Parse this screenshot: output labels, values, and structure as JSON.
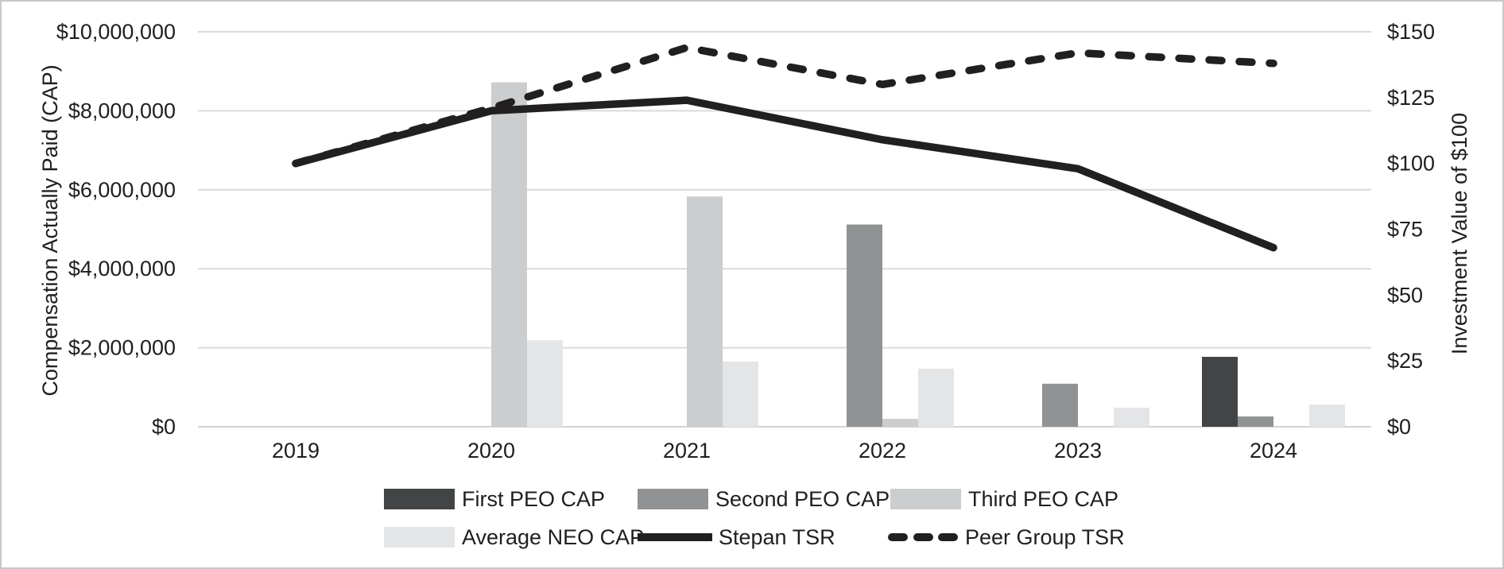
{
  "chart_data": {
    "type": "combo-bar-line",
    "title": "",
    "categories": [
      "2019",
      "2020",
      "2021",
      "2022",
      "2023",
      "2024"
    ],
    "bar_series": [
      {
        "name": "First PEO CAP",
        "color": "#424445",
        "axis": "left",
        "values": [
          null,
          null,
          null,
          null,
          null,
          1770000
        ]
      },
      {
        "name": "Second PEO CAP",
        "color": "#909293",
        "axis": "left",
        "values": [
          null,
          null,
          null,
          5120000,
          1090000,
          260000
        ]
      },
      {
        "name": "Third PEO CAP",
        "color": "#cbcdce",
        "axis": "left",
        "values": [
          null,
          8720000,
          5830000,
          200000,
          null,
          null
        ]
      },
      {
        "name": "Average NEO CAP",
        "color": "#e4e5e6",
        "axis": "left",
        "values": [
          null,
          2190000,
          1650000,
          1470000,
          480000,
          560000
        ]
      }
    ],
    "line_series": [
      {
        "name": "Stepan TSR",
        "style": "solid",
        "color": "#211f20",
        "axis": "right",
        "values": [
          100,
          120,
          124,
          109,
          98,
          68
        ]
      },
      {
        "name": "Peer Group TSR",
        "style": "dashed",
        "color": "#211f20",
        "axis": "right",
        "values": [
          100,
          121,
          144,
          130,
          142,
          138
        ]
      }
    ],
    "left_axis": {
      "title": "Compensation Actually Paid (CAP)",
      "min": 0,
      "max": 10000000,
      "tick_step": 2000000,
      "ticks": [
        "$0",
        "$2,000,000",
        "$4,000,000",
        "$6,000,000",
        "$8,000,000",
        "$10,000,000"
      ]
    },
    "right_axis": {
      "title": "Investment Value of $100",
      "min": 0,
      "max": 150,
      "tick_step": 25,
      "ticks": [
        "$0",
        "$25",
        "$50",
        "$75",
        "$100",
        "$125",
        "$150"
      ]
    },
    "grid": true,
    "legend_position": "bottom"
  },
  "colors": {
    "grid": "#d9dadb",
    "axis_line": "#d2d3d4",
    "text": "#1f1f1f",
    "frame": "#c6c9ca",
    "background": "#ffffff"
  }
}
